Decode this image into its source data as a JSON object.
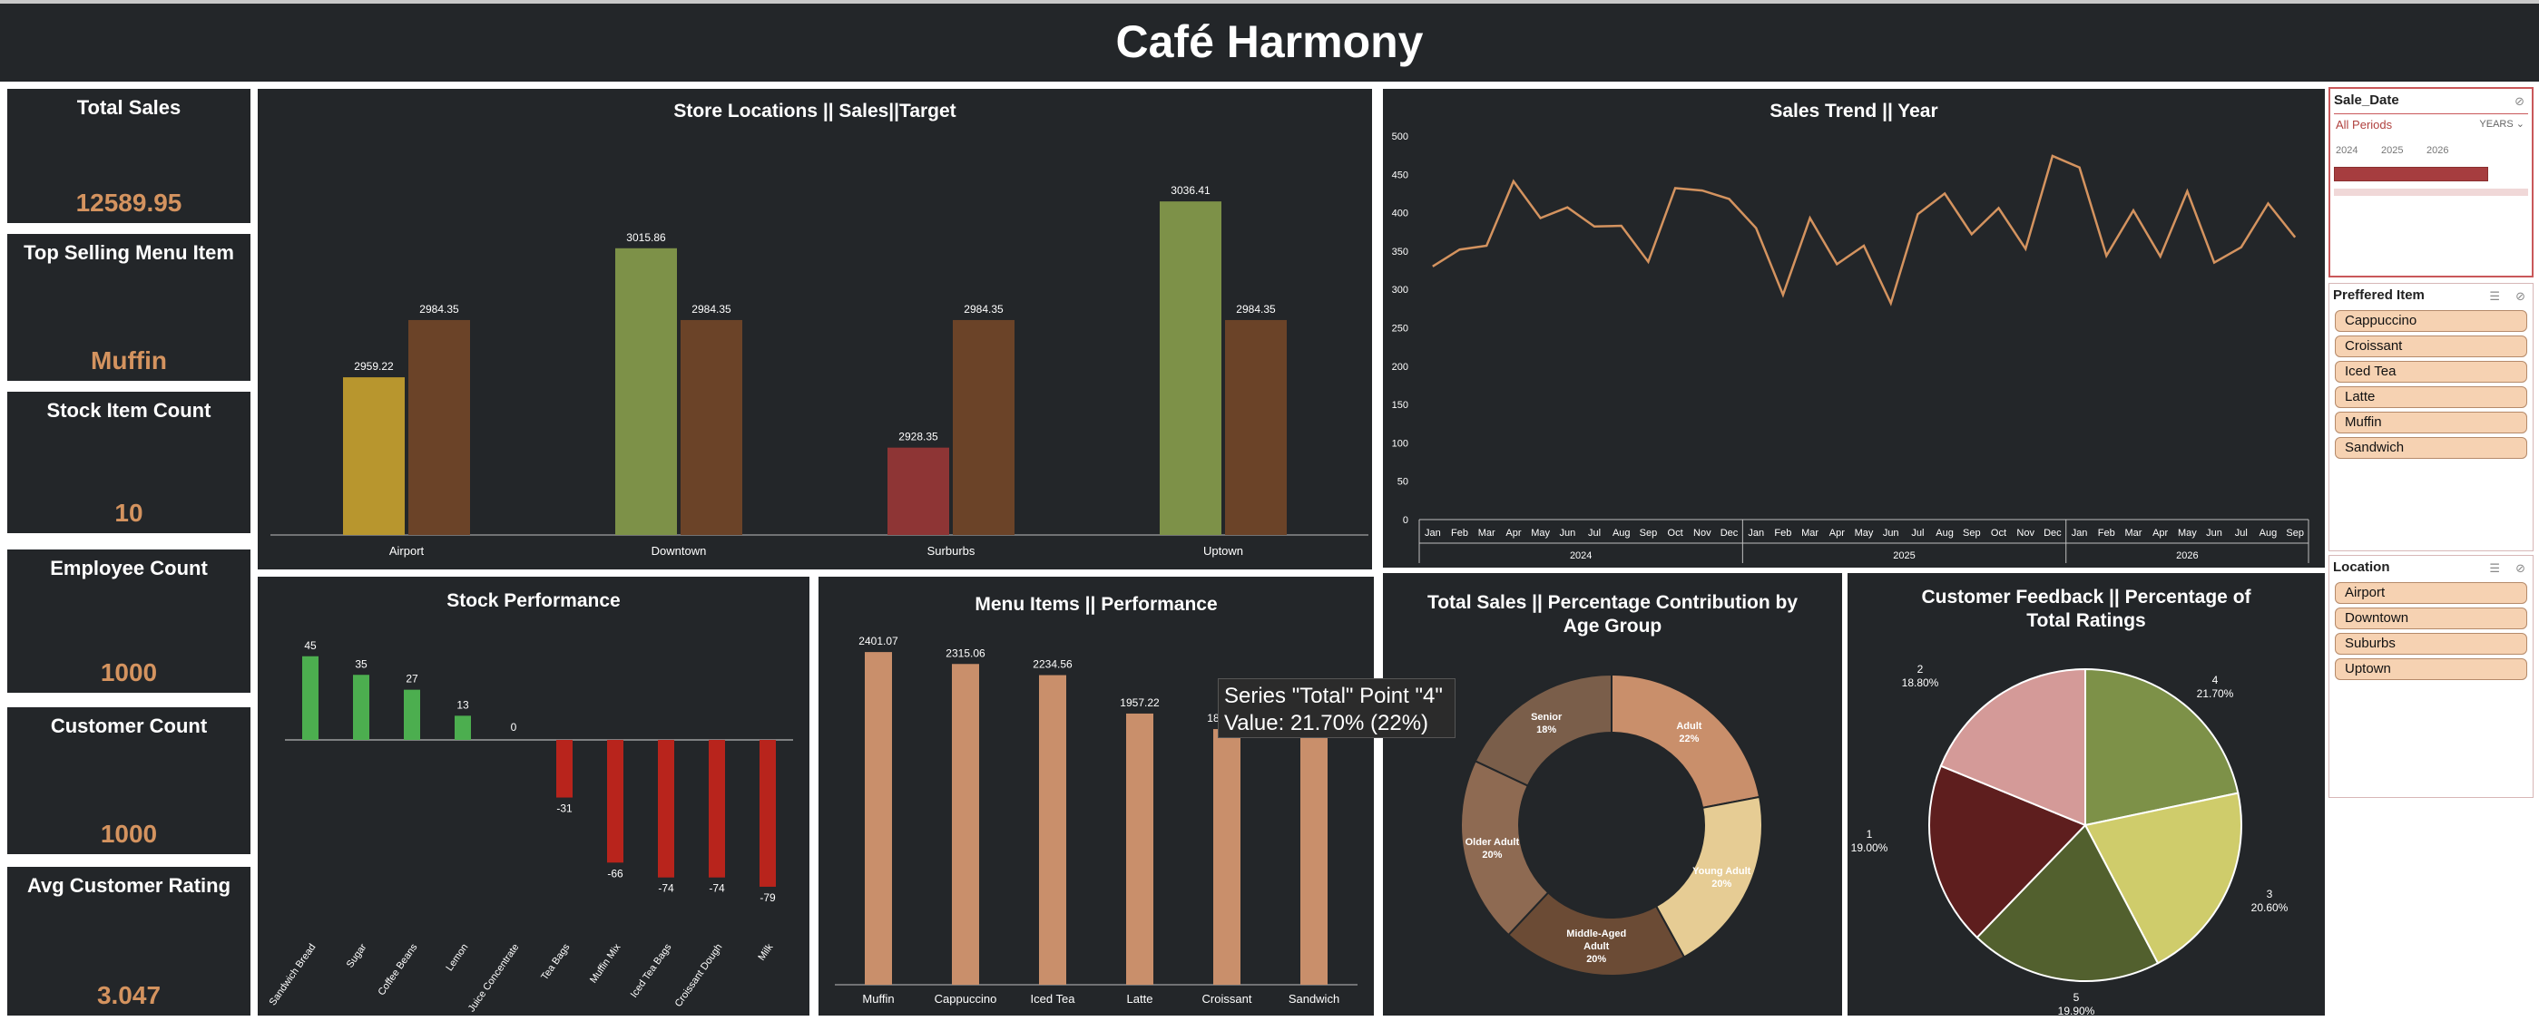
{
  "title": "Café Harmony",
  "kpis": [
    {
      "label": "Total Sales",
      "value": "12589.95"
    },
    {
      "label": "Top Selling Menu Item",
      "value": "Muffin"
    },
    {
      "label": "Stock Item Count",
      "value": "10"
    },
    {
      "label": "Employee Count",
      "value": "1000"
    },
    {
      "label": "Customer Count",
      "value": "1000"
    },
    {
      "label": "Avg Customer Rating",
      "value": "3.047"
    }
  ],
  "colors": {
    "background": "#232629",
    "accent": "#d4935f",
    "target_bar": "#6b4328",
    "line": "#d4935f",
    "positive": "#4cae4f",
    "negative": "#b8241c",
    "menu_bar": "#c98f6b"
  },
  "slicers": {
    "date": {
      "header": "Sale_Date",
      "period": "All Periods",
      "unit": "YEARS",
      "years": [
        "2024",
        "2025",
        "2026"
      ]
    },
    "item": {
      "header": "Preffered Item",
      "items": [
        "Cappuccino",
        "Croissant",
        "Iced Tea",
        "Latte",
        "Muffin",
        "Sandwich"
      ]
    },
    "location": {
      "header": "Location",
      "items": [
        "Airport",
        "Downtown",
        "Suburbs",
        "Uptown"
      ]
    }
  },
  "tooltip": {
    "line1": "Series \"Total\" Point \"4\"",
    "line2": "Value: 21.70% (22%)"
  },
  "chart_data": [
    {
      "id": "store",
      "type": "bar",
      "title": "Store Locations || Sales||Target",
      "categories": [
        "Airport",
        "Downtown",
        "Surburbs",
        "Uptown"
      ],
      "series": [
        {
          "values": [
            2959.22,
            3015.86,
            2928.35,
            3036.41
          ],
          "colors": [
            "#b8962e",
            "#7d9148",
            "#8e3535",
            "#7d9148"
          ]
        },
        {
          "values": [
            2984.35,
            2984.35,
            2984.35,
            2984.35
          ],
          "color": "#6b4328"
        }
      ],
      "ylim": [
        2890,
        3050
      ]
    },
    {
      "id": "trend",
      "type": "line",
      "title": "Sales Trend || Year",
      "months": [
        "Jan",
        "Feb",
        "Mar",
        "Apr",
        "May",
        "Jun",
        "Jul",
        "Aug",
        "Sep",
        "Oct",
        "Nov",
        "Dec",
        "Jan",
        "Feb",
        "Mar",
        "Apr",
        "May",
        "Jun",
        "Jul",
        "Aug",
        "Sep",
        "Oct",
        "Nov",
        "Dec",
        "Jan",
        "Feb",
        "Mar",
        "Apr",
        "May",
        "Jun",
        "Jul",
        "Aug",
        "Sep"
      ],
      "years": [
        "2024",
        "2025",
        "2026"
      ],
      "values": [
        330,
        352,
        357,
        441,
        393,
        407,
        382,
        383,
        336,
        432,
        429,
        418,
        380,
        293,
        393,
        333,
        357,
        282,
        398,
        425,
        372,
        406,
        353,
        474,
        459,
        344,
        403,
        343,
        428,
        335,
        355,
        412,
        368
      ],
      "yticks": [
        0,
        50,
        100,
        150,
        200,
        250,
        300,
        350,
        400,
        450,
        500
      ],
      "ylim": [
        0,
        500
      ]
    },
    {
      "id": "stock",
      "type": "bar",
      "title": "Stock Performance",
      "categories": [
        "Sandwich Bread",
        "Sugar",
        "Coffee Beans",
        "Lemon",
        "Juice Concentrate",
        "Tea Bags",
        "Muffin Mix",
        "Iced Tea Bags",
        "Croissant Dough",
        "Milk"
      ],
      "values": [
        45,
        35,
        27,
        13,
        0,
        -31,
        -66,
        -74,
        -74,
        -79
      ]
    },
    {
      "id": "menu",
      "type": "bar",
      "title": "Menu Items || Performance",
      "categories": [
        "Muffin",
        "Cappuccino",
        "Iced Tea",
        "Latte",
        "Croissant",
        "Sandwich"
      ],
      "values": [
        2401.07,
        2315.06,
        2234.56,
        1957.22,
        1845.26,
        1836.78
      ],
      "ylim": [
        0,
        2500
      ]
    },
    {
      "id": "age",
      "type": "pie",
      "title": "Total Sales || Percentage Contribution by Age Group",
      "labels": [
        "Adult",
        "Young Adult",
        "Middle-Aged Adult",
        "Older Adult",
        "Senior"
      ],
      "values": [
        22,
        20,
        20,
        20,
        18
      ],
      "percent_labels": [
        "22%",
        "20%",
        "20%",
        "20%",
        "18%"
      ],
      "colors": [
        "#c98f6b",
        "#e6cc94",
        "#6b4b35",
        "#8e6a52",
        "#7a5e4a"
      ]
    },
    {
      "id": "feedback",
      "type": "pie",
      "title": "Customer Feedback || Percentage of Total Ratings",
      "labels": [
        "4",
        "3",
        "5",
        "1",
        "2"
      ],
      "values": [
        21.7,
        20.6,
        19.9,
        19.0,
        18.8
      ],
      "percent_labels": [
        "21.70%",
        "20.60%",
        "19.90%",
        "19.00%",
        "18.80%"
      ],
      "colors": [
        "#7d9148",
        "#cfcc6b",
        "#52602e",
        "#5e1e1e",
        "#d49a98"
      ]
    }
  ]
}
